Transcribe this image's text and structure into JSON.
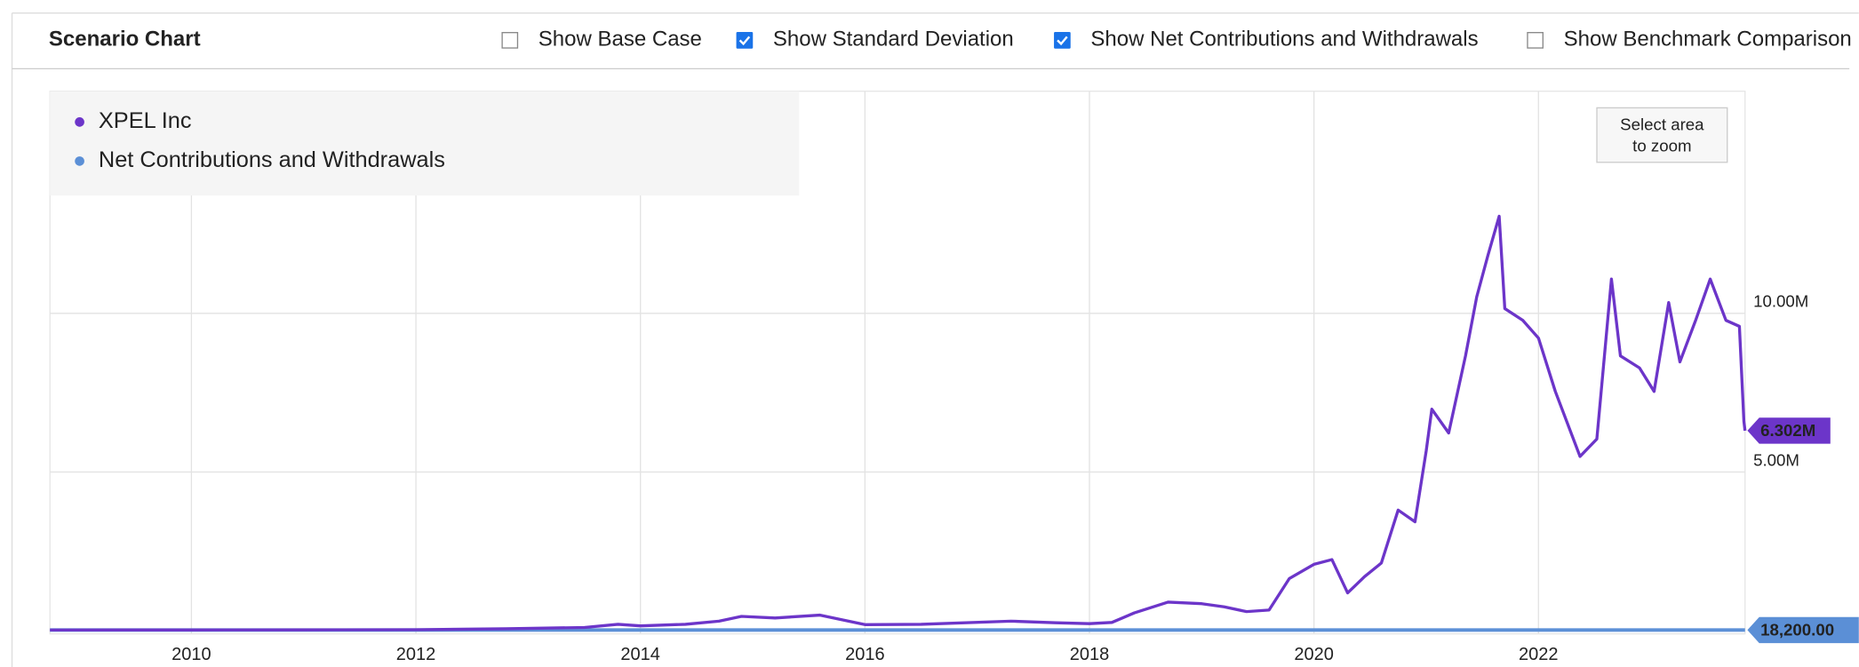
{
  "header": {
    "title": "Scenario Chart",
    "options": [
      {
        "label": "Show Base Case",
        "checked": false
      },
      {
        "label": "Show Standard Deviation",
        "checked": true
      },
      {
        "label": "Show Net Contributions and Withdrawals",
        "checked": true
      },
      {
        "label": "Show Benchmark Comparison",
        "checked": false
      }
    ]
  },
  "zoom_button": {
    "lines": [
      "Select area",
      "to zoom"
    ]
  },
  "chart_data": {
    "type": "line",
    "series": [
      {
        "name": "XPEL Inc",
        "color": "#6c35c9",
        "x": [
          2008.74,
          2010,
          2011,
          2012,
          2012.8,
          2013.5,
          2013.8,
          2014.0,
          2014.4,
          2014.7,
          2014.9,
          2015.2,
          2015.6,
          2016.0,
          2016.5,
          2017.3,
          2017.7,
          2018.0,
          2018.2,
          2018.4,
          2018.7,
          2019.0,
          2019.2,
          2019.4,
          2019.6,
          2019.78,
          2020.0,
          2020.16,
          2020.3,
          2020.45,
          2020.6,
          2020.75,
          2020.9,
          2021.0,
          2021.05,
          2021.2,
          2021.35,
          2021.45,
          2021.55,
          2021.65,
          2021.7,
          2021.86,
          2022.0,
          2022.15,
          2022.37,
          2022.52,
          2022.65,
          2022.73,
          2022.9,
          2023.03,
          2023.16,
          2023.26,
          2023.4,
          2023.53,
          2023.67,
          2023.79,
          2023.83,
          2023.84
        ],
        "values": [
          20000,
          22000,
          25000,
          30000,
          60000,
          100000,
          200000,
          150000,
          200000,
          300000,
          450000,
          400000,
          490000,
          190000,
          200000,
          300000,
          250000,
          220000,
          260000,
          560000,
          900000,
          850000,
          750000,
          600000,
          650000,
          1640000,
          2090000,
          2240000,
          1190000,
          1700000,
          2130000,
          3800000,
          3430000,
          5670000,
          6980000,
          6230000,
          8660000,
          10520000,
          11830000,
          13060000,
          10150000,
          9780000,
          9220000,
          7540000,
          5490000,
          6040000,
          11080000,
          8660000,
          8280000,
          7540000,
          10340000,
          8470000,
          9780000,
          11080000,
          9780000,
          9590000,
          6600000,
          6302000
        ],
        "value_labels": [
          null,
          null,
          null,
          null,
          null,
          null,
          null,
          null,
          null,
          null,
          null,
          null,
          null,
          null,
          null,
          null,
          null,
          null,
          null,
          null,
          null,
          null,
          null,
          null,
          null,
          null,
          null,
          null,
          null,
          null,
          null,
          null,
          null,
          null,
          null,
          null,
          null,
          null,
          null,
          null,
          null,
          null,
          null,
          null,
          null,
          null,
          null,
          null,
          null,
          null,
          null,
          null,
          null,
          null,
          null,
          null,
          null,
          "6.302M"
        ]
      },
      {
        "name": "Net Contributions and Withdrawals",
        "color": "#5b8fd6",
        "x": [
          2008.74,
          2023.84
        ],
        "values": [
          18200,
          18200
        ],
        "value_labels": [
          null,
          "18,200.00"
        ]
      }
    ],
    "xlim": [
      2008.74,
      2023.84
    ],
    "xticks": [
      2010,
      2012,
      2014,
      2016,
      2018,
      2020,
      2022
    ],
    "ylim": [
      -100000,
      17000000
    ],
    "yticks": [
      {
        "value": 5000000,
        "label": "5.00M"
      },
      {
        "value": 10000000,
        "label": "10.00M"
      }
    ],
    "grid": true,
    "legend": "top-left"
  }
}
